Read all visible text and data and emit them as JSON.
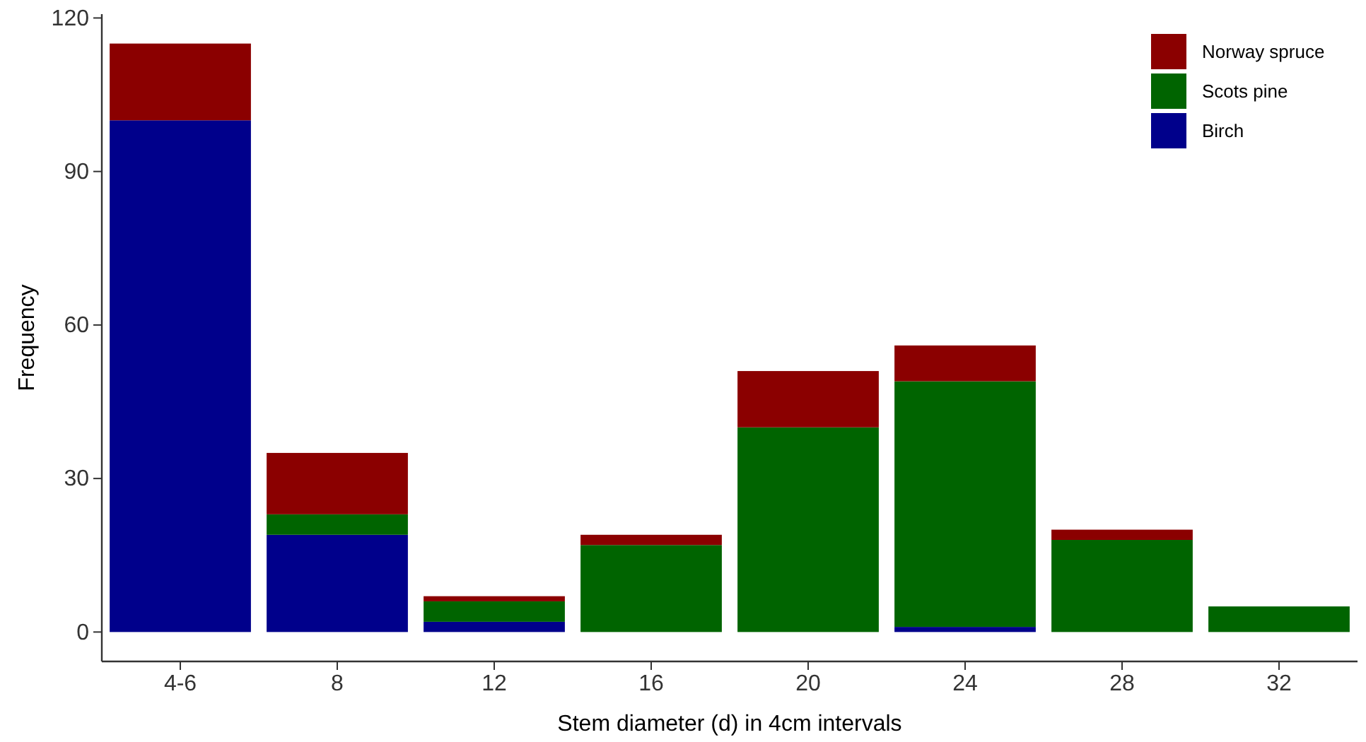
{
  "chart_data": {
    "type": "bar",
    "stacked": true,
    "xlabel": "Stem diameter (d) in 4cm intervals",
    "ylabel": "Frequency",
    "categories": [
      "4-6",
      "8",
      "12",
      "16",
      "20",
      "24",
      "28",
      "32"
    ],
    "series": [
      {
        "name": "Birch",
        "color": "#00008b",
        "values": [
          100,
          19,
          2,
          0,
          0,
          1,
          0,
          0
        ]
      },
      {
        "name": "Scots pine",
        "color": "#006400",
        "values": [
          0,
          4,
          4,
          17,
          40,
          48,
          18,
          5
        ]
      },
      {
        "name": "Norway spruce",
        "color": "#8b0000",
        "values": [
          15,
          12,
          1,
          2,
          11,
          7,
          2,
          0
        ]
      }
    ],
    "ylim": [
      -5.75,
      120.75
    ],
    "yticks": [
      0,
      30,
      60,
      90,
      120
    ],
    "grid": false,
    "legend": "top right"
  }
}
